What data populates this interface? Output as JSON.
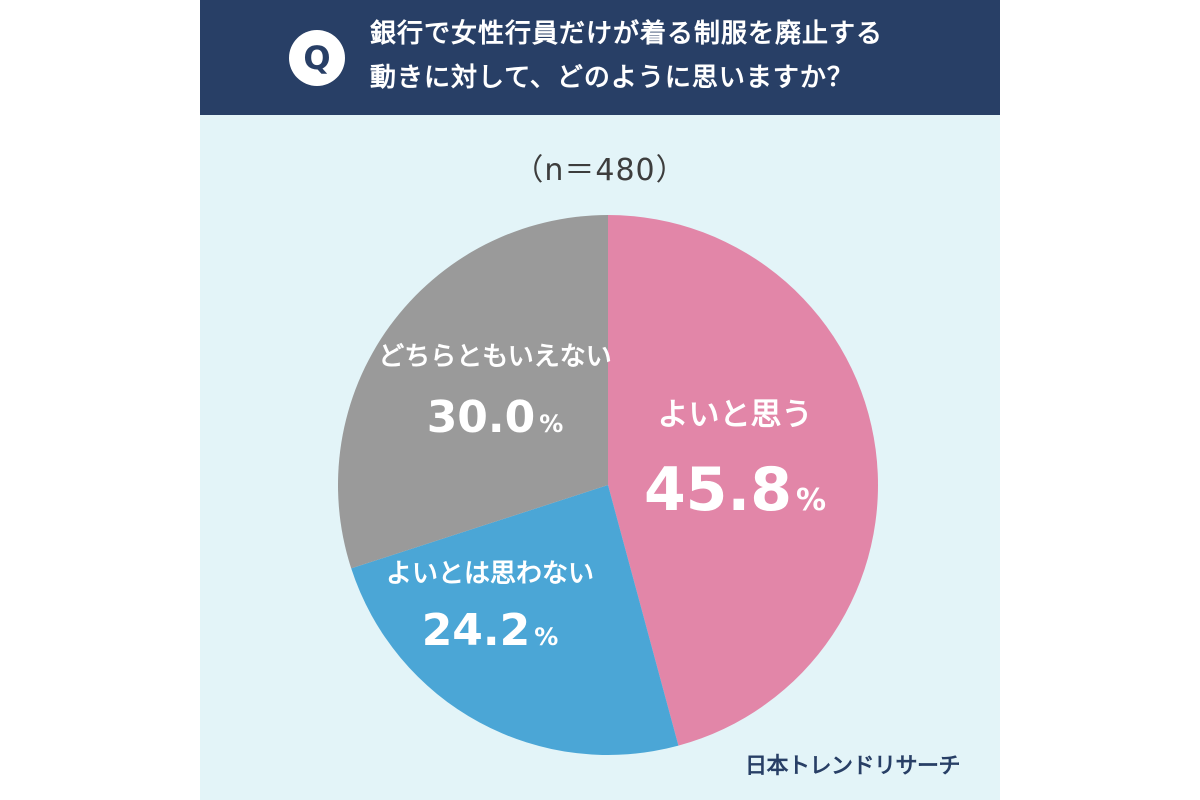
{
  "header": {
    "badge": "Q",
    "question_line1": "銀行で女性行員だけが着る制服を廃止する",
    "question_line2": "動きに対して、どのように思いますか？"
  },
  "sample_size": "（n＝480）",
  "colors": {
    "header_bg": "#283f66",
    "background": "#e3f4f8",
    "positive": "#e286a8",
    "negative": "#4ba6d6",
    "neutral": "#9a9a9a"
  },
  "chart_data": {
    "type": "pie",
    "start": "12 o'clock",
    "direction": "clockwise",
    "slices": [
      {
        "label": "よいと思う",
        "value": 45.8,
        "display": "45.8",
        "unit": "%",
        "color": "#e286a8"
      },
      {
        "label": "よいとは思わない",
        "value": 24.2,
        "display": "24.2",
        "unit": "%",
        "color": "#4ba6d6"
      },
      {
        "label": "どちらともいえない",
        "value": 30.0,
        "display": "30.0",
        "unit": "%",
        "color": "#9a9a9a"
      }
    ]
  },
  "footer": {
    "logo": "日本トレンドリサーチ"
  }
}
